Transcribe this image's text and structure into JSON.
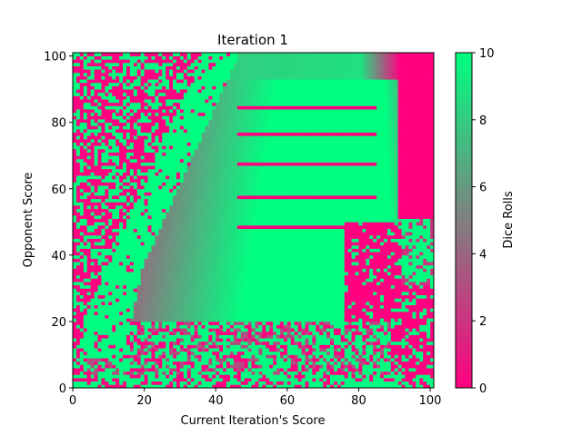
{
  "chart_data": {
    "type": "heatmap",
    "title": "Iteration 1",
    "xlabel": "Current Iteration's Score",
    "ylabel": "Opponent Score",
    "colorbar_label": "Dice Rolls",
    "xlim": [
      0,
      101
    ],
    "ylim": [
      0,
      101
    ],
    "xticks": [
      0,
      20,
      40,
      60,
      80,
      100
    ],
    "yticks": [
      0,
      20,
      40,
      60,
      80,
      100
    ],
    "clim": [
      0,
      10
    ],
    "colorbar_ticks": [
      0,
      2,
      4,
      6,
      8,
      10
    ],
    "grid_size": [
      101,
      101
    ],
    "colormap": {
      "low": "#ff0080",
      "mid": "#808080",
      "high": "#00ff80"
    },
    "description_of_pattern": "",
    "regions": {
      "lower_left_scatter": "mixed 0 and 10 in x<20",
      "diagonal_band": "10 along band from (5,5) to (45,101)",
      "upper_middle": "graded values rising left-to-right (about 3 to 10)",
      "stripes": "horizontal rows of 0 at y ~ 48, 57, 67, 76, 84, 92",
      "right_edge": "0 for x>88 at high y; mixed 10 block near x 92-100, y 30-48",
      "bottom_band": "noisy mixture of 0 and 10 for y<20"
    }
  }
}
